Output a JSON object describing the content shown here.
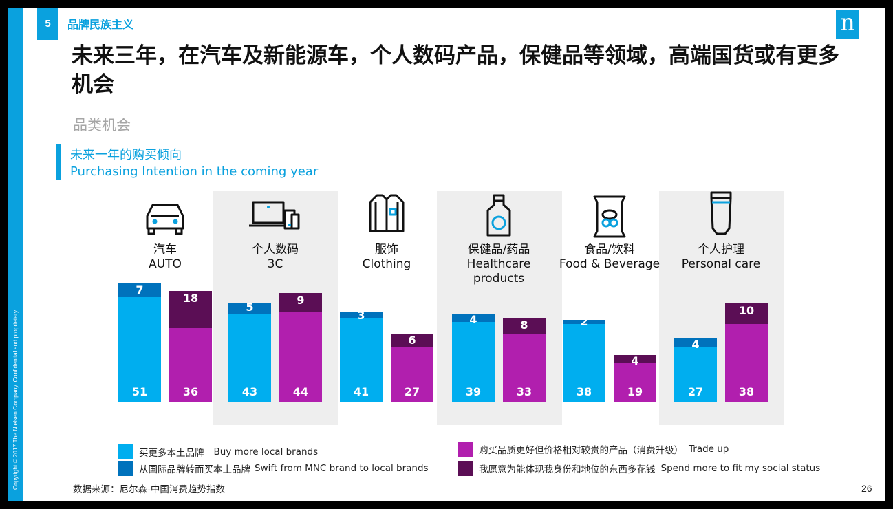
{
  "slide": {
    "copyright": "Copyright © 2017 The Nielsen Company. Confidential and proprietary.",
    "page_badge": "5",
    "section_title": "品牌民族主义",
    "logo": "n",
    "headline": "未来三年，在汽车及新能源车，个人数码产品，保健品等领域，高端国货或有更多机会",
    "subheading": "品类机会",
    "chart_title_cn": "未来一年的购买倾向",
    "chart_title_en": "Purchasing Intention in the coming year",
    "source": "数据来源：尼尔森-中国消费趋势指数",
    "page_number": "26"
  },
  "colors": {
    "brand_blue": "#0aa1de",
    "buy_local": "#00aeef",
    "switch_mnc": "#0072bc",
    "trade_up": "#b11fae",
    "social_status": "#5b0e55",
    "shade": "#eeeeee"
  },
  "chart_data": {
    "type": "bar",
    "stacked": true,
    "categories": [
      {
        "cn": "汽车",
        "en": "AUTO",
        "icon": "car-icon",
        "shaded": false
      },
      {
        "cn": "个人数码",
        "en": "3C",
        "icon": "devices-icon",
        "shaded": true
      },
      {
        "cn": "服饰",
        "en": "Clothing",
        "icon": "shirt-icon",
        "shaded": false
      },
      {
        "cn": "保健品/药品",
        "en": "Healthcare products",
        "icon": "bottle-icon",
        "shaded": true
      },
      {
        "cn": "食品/饮料",
        "en": "Food & Beverage",
        "icon": "snack-bag-icon",
        "shaded": false
      },
      {
        "cn": "个人护理",
        "en": "Personal care",
        "icon": "tube-icon",
        "shaded": true
      }
    ],
    "groups": [
      {
        "name": "buy_local",
        "series": [
          {
            "name": "买更多本土品牌 Buy more local brands",
            "color": "#00aeef",
            "values": [
              51,
              43,
              41,
              39,
              38,
              27
            ]
          },
          {
            "name": "从国际品牌转而买本土品牌 Swift from MNC brand to local brands",
            "color": "#0072bc",
            "values": [
              7,
              5,
              3,
              4,
              2,
              4
            ]
          }
        ]
      },
      {
        "name": "trade_up",
        "series": [
          {
            "name": "购买品质更好但价格相对较贵的产品（消费升级） Trade up",
            "color": "#b11fae",
            "values": [
              36,
              44,
              27,
              33,
              19,
              38
            ]
          },
          {
            "name": "我愿意为能体现我身份和地位的东西多花钱 Spend more to fit my social status",
            "color": "#5b0e55",
            "values": [
              18,
              9,
              6,
              8,
              4,
              10
            ]
          }
        ]
      }
    ]
  },
  "legend": [
    {
      "cn": "买更多本土品牌",
      "en": "Buy more local brands",
      "color": "#00aeef"
    },
    {
      "cn": "从国际品牌转而买本土品牌",
      "en": "Swift from MNC brand to local brands",
      "color": "#0072bc"
    },
    {
      "cn": "购买品质更好但价格相对较贵的产品（消费升级）",
      "en": "Trade up",
      "color": "#b11fae"
    },
    {
      "cn": "我愿意为能体现我身份和地位的东西多花钱",
      "en": "Spend more to fit my social status",
      "color": "#5b0e55"
    }
  ]
}
